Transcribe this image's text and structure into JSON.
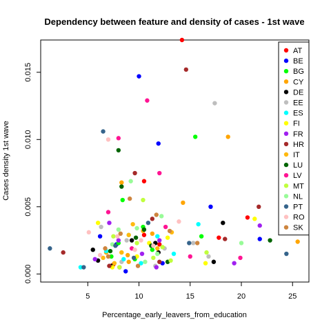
{
  "chart_data": {
    "type": "scatter",
    "title": "Dependency between feature and density of cases -  1st wave",
    "xlabel": "Percentage_early_leavers_from_education",
    "ylabel": "Cases density  1st wave",
    "xlim": [
      0.4,
      26.6
    ],
    "ylim": [
      -0.0006,
      0.0174
    ],
    "x_ticks": [
      {
        "value": 5,
        "label": "5"
      },
      {
        "value": 10,
        "label": "10"
      },
      {
        "value": 15,
        "label": "15"
      },
      {
        "value": 20,
        "label": "20"
      },
      {
        "value": 25,
        "label": "25"
      }
    ],
    "y_ticks": [
      {
        "value": 0,
        "label": "0.000"
      },
      {
        "value": 0.005,
        "label": "0.005"
      },
      {
        "value": 0.01,
        "label": "0.010"
      },
      {
        "value": 0.015,
        "label": "0.015"
      }
    ],
    "grid": false,
    "legend_position": "top-right",
    "series": [
      {
        "name": "AT",
        "color": "#ff0000",
        "points": [
          [
            14.2,
            0.0174
          ],
          [
            10.5,
            0.0069
          ],
          [
            17.8,
            0.0027
          ],
          [
            12.0,
            0.0022
          ],
          [
            20.6,
            0.0042
          ],
          [
            10.5,
            0.0029
          ],
          [
            7.5,
            0.0007
          ],
          [
            8.1,
            0.0005
          ]
        ]
      },
      {
        "name": "BE",
        "color": "#0000ff",
        "points": [
          [
            10.0,
            0.0147
          ],
          [
            11.9,
            0.0097
          ],
          [
            17.0,
            0.005
          ],
          [
            6.2,
            0.0028
          ],
          [
            7.8,
            0.0022
          ],
          [
            21.8,
            0.0026
          ],
          [
            8.7,
            0.0002
          ],
          [
            12.3,
            0.0008
          ]
        ]
      },
      {
        "name": "BG",
        "color": "#00ff00",
        "points": [
          [
            15.5,
            0.0102
          ],
          [
            8.4,
            0.0055
          ],
          [
            8.0,
            0.0023
          ],
          [
            10.4,
            0.0035
          ],
          [
            11.3,
            0.0018
          ],
          [
            16.1,
            0.0028
          ],
          [
            7.3,
            0.0013
          ],
          [
            9.6,
            0.0011
          ]
        ]
      },
      {
        "name": "CY",
        "color": "#ffa500",
        "points": [
          [
            18.7,
            0.0102
          ],
          [
            14.3,
            0.0053
          ],
          [
            8.3,
            0.0068
          ],
          [
            9.0,
            0.0009
          ],
          [
            25.5,
            0.0024
          ],
          [
            6.8,
            0.0016
          ],
          [
            11.3,
            0.003
          ],
          [
            8.9,
            0.0014
          ]
        ]
      },
      {
        "name": "DE",
        "color": "#000000",
        "points": [
          [
            18.2,
            0.0038
          ],
          [
            5.5,
            0.0018
          ],
          [
            11.9,
            0.0016
          ],
          [
            17.3,
            0.0009
          ],
          [
            7.3,
            0.0006
          ],
          [
            11.6,
            0.0023
          ],
          [
            6.0,
            0.001
          ],
          [
            9.3,
            0.0025
          ]
        ]
      },
      {
        "name": "EE",
        "color": "#bebebe",
        "points": [
          [
            17.4,
            0.0127
          ],
          [
            6.3,
            0.0035
          ],
          [
            11.6,
            0.0006
          ],
          [
            8.8,
            0.0025
          ],
          [
            15.3,
            0.0023
          ],
          [
            16.8,
            0.0013
          ],
          [
            8.3,
            0.0009
          ],
          [
            12.5,
            0.0019
          ]
        ]
      },
      {
        "name": "ES",
        "color": "#00ffff",
        "points": [
          [
            15.8,
            0.0037
          ],
          [
            4.3,
            0.0005
          ],
          [
            9.0,
            0.0029
          ],
          [
            10.2,
            0.0008
          ],
          [
            11.8,
            0.0028
          ],
          [
            6.8,
            0.0017
          ],
          [
            8.5,
            0.0011
          ],
          [
            13.4,
            0.0015
          ]
        ]
      },
      {
        "name": "FI",
        "color": "#ffff00",
        "points": [
          [
            21.3,
            0.0041
          ],
          [
            6.0,
            0.0038
          ],
          [
            8.3,
            0.0016
          ],
          [
            11.0,
            0.0023
          ],
          [
            7.4,
            0.0005
          ],
          [
            9.8,
            0.0013
          ],
          [
            16.5,
            0.0008
          ],
          [
            12.8,
            0.0027
          ]
        ]
      },
      {
        "name": "FR",
        "color": "#a020f0",
        "points": [
          [
            7.1,
            0.0038
          ],
          [
            12.0,
            0.0025
          ],
          [
            19.3,
            0.0008
          ],
          [
            10.3,
            0.0015
          ],
          [
            8.0,
            0.0025
          ],
          [
            21.8,
            0.0036
          ],
          [
            5.7,
            0.0011
          ],
          [
            11.7,
            0.0005
          ]
        ]
      },
      {
        "name": "HR",
        "color": "#a52a2a",
        "points": [
          [
            14.6,
            0.0152
          ],
          [
            9.6,
            0.0075
          ],
          [
            21.7,
            0.005
          ],
          [
            18.4,
            0.0026
          ],
          [
            2.6,
            0.0016
          ],
          [
            11.3,
            0.0041
          ],
          [
            7.1,
            0.0006
          ],
          [
            12.0,
            0.0009
          ]
        ]
      },
      {
        "name": "IT",
        "color": "#ffb90f",
        "points": [
          [
            9.0,
            0.0029
          ],
          [
            10.4,
            0.0032
          ],
          [
            13.2,
            0.0031
          ],
          [
            8.3,
            0.0016
          ],
          [
            7.6,
            0.0008
          ],
          [
            9.4,
            0.0037
          ],
          [
            11.8,
            0.0019
          ],
          [
            6.5,
            0.0012
          ]
        ]
      },
      {
        "name": "LU",
        "color": "#006400",
        "points": [
          [
            8.0,
            0.0092
          ],
          [
            8.3,
            0.0065
          ],
          [
            22.8,
            0.0025
          ],
          [
            12.8,
            0.0009
          ],
          [
            7.2,
            0.0017
          ],
          [
            10.5,
            0.0033
          ],
          [
            9.7,
            0.0027
          ],
          [
            11.2,
            0.0021
          ]
        ]
      },
      {
        "name": "LV",
        "color": "#ff1493",
        "points": [
          [
            10.8,
            0.0129
          ],
          [
            8.0,
            0.0101
          ],
          [
            12.0,
            0.0075
          ],
          [
            7.0,
            0.0046
          ],
          [
            15.0,
            0.0013
          ],
          [
            19.9,
            0.0012
          ],
          [
            9.3,
            0.0019
          ],
          [
            12.6,
            0.0035
          ]
        ]
      },
      {
        "name": "MT",
        "color": "#c0ff3e",
        "points": [
          [
            10.4,
            0.0055
          ],
          [
            7.5,
            0.0028
          ],
          [
            9.8,
            0.0023
          ],
          [
            11.4,
            0.0012
          ],
          [
            13.1,
            0.001
          ],
          [
            8.1,
            0.0005
          ],
          [
            12.3,
            0.002
          ],
          [
            16.6,
            0.0016
          ]
        ]
      },
      {
        "name": "NL",
        "color": "#98fb98",
        "points": [
          [
            9.2,
            0.0069
          ],
          [
            8.0,
            0.0033
          ],
          [
            20.0,
            0.0023
          ],
          [
            9.8,
            0.0034
          ],
          [
            11.8,
            0.0015
          ],
          [
            7.4,
            0.0022
          ],
          [
            10.6,
            0.0009
          ],
          [
            12.2,
            0.0043
          ]
        ]
      },
      {
        "name": "PT",
        "color": "#36648b",
        "points": [
          [
            6.5,
            0.0106
          ],
          [
            1.3,
            0.0019
          ],
          [
            14.9,
            0.0023
          ],
          [
            24.4,
            0.0015
          ],
          [
            10.9,
            0.0038
          ],
          [
            7.7,
            0.0021
          ],
          [
            9.5,
            0.0012
          ],
          [
            4.6,
            0.0005
          ]
        ]
      },
      {
        "name": "RO",
        "color": "#ffc1c1",
        "points": [
          [
            7.0,
            0.01
          ],
          [
            5.1,
            0.0031
          ],
          [
            7.9,
            0.0028
          ],
          [
            11.4,
            0.0021
          ],
          [
            6.2,
            0.0014
          ],
          [
            9.6,
            0.0018
          ],
          [
            13.9,
            0.0039
          ],
          [
            10.2,
            0.0025
          ]
        ]
      },
      {
        "name": "SK",
        "color": "#cd853f",
        "points": [
          [
            9.1,
            0.0056
          ],
          [
            8.2,
            0.003
          ],
          [
            11.7,
            0.0044
          ],
          [
            13.0,
            0.0032
          ],
          [
            7.0,
            0.0013
          ],
          [
            9.9,
            0.0006
          ],
          [
            15.7,
            0.0023
          ],
          [
            6.7,
            0.0019
          ]
        ]
      }
    ]
  }
}
